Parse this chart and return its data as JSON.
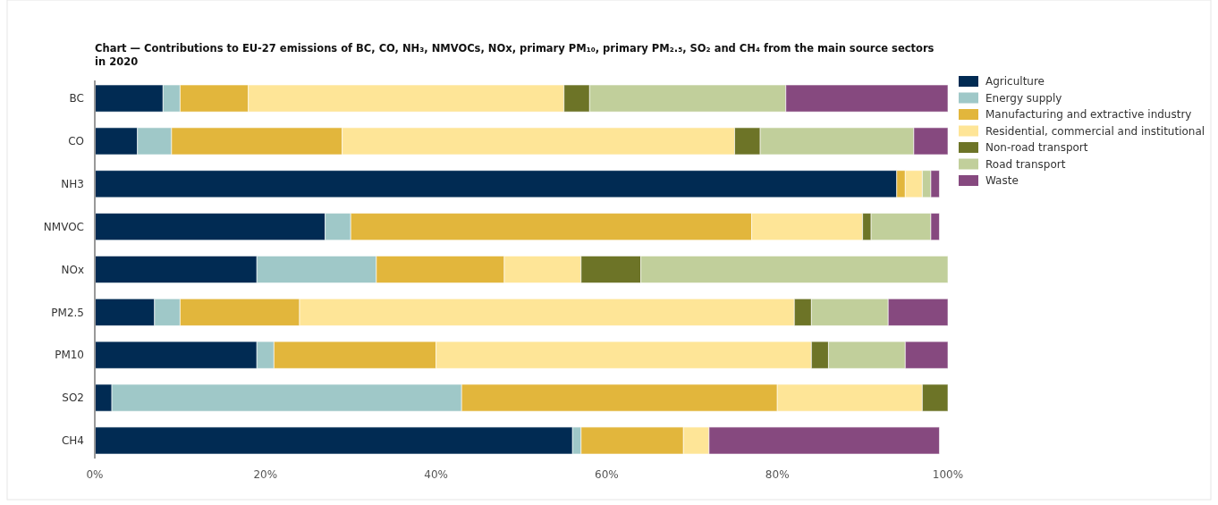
{
  "chart_data": {
    "type": "bar",
    "orientation": "horizontal",
    "stacked": true,
    "title": "Chart — Contributions to EU-27 emissions of BC, CO, NH₃, NMVOCs, NOx, primary PM₁₀, primary PM₂.₅, SO₂ and CH₄ from the main source sectors in 2020",
    "categories": [
      "BC",
      "CO",
      "NH3",
      "NMVOC",
      "NOx",
      "PM2.5",
      "PM10",
      "SO2",
      "CH4"
    ],
    "series": [
      {
        "name": "Agriculture",
        "color": "#012b53",
        "values": [
          8,
          5,
          94,
          27,
          19,
          7,
          19,
          2,
          56
        ]
      },
      {
        "name": "Energy supply",
        "color": "#9fc8c8",
        "values": [
          2,
          4,
          0,
          3,
          14,
          3,
          2,
          41,
          1
        ]
      },
      {
        "name": "Manufacturing and extractive industry",
        "color": "#e2b63c",
        "values": [
          8,
          20,
          1,
          47,
          15,
          14,
          19,
          37,
          12
        ]
      },
      {
        "name": "Residential, commercial and institutional",
        "color": "#fee597",
        "values": [
          37,
          46,
          2,
          13,
          9,
          58,
          44,
          17,
          3
        ]
      },
      {
        "name": "Non-road transport",
        "color": "#6d7427",
        "values": [
          3,
          3,
          0,
          1,
          7,
          2,
          2,
          3,
          0
        ]
      },
      {
        "name": "Road transport",
        "color": "#c1cf9b",
        "values": [
          23,
          18,
          1,
          7,
          36,
          9,
          9,
          0,
          0
        ]
      },
      {
        "name": "Waste",
        "color": "#86497f",
        "values": [
          19,
          4,
          1,
          1,
          0,
          7,
          5,
          0,
          27
        ]
      }
    ],
    "xlim": [
      0,
      100
    ],
    "xticks": [
      {
        "value": 0,
        "label": "0%"
      },
      {
        "value": 20,
        "label": "20%"
      },
      {
        "value": 40,
        "label": "40%"
      },
      {
        "value": 60,
        "label": "60%"
      },
      {
        "value": 80,
        "label": "80%"
      },
      {
        "value": 100,
        "label": "100%"
      }
    ],
    "grid": false,
    "legend": "right"
  }
}
